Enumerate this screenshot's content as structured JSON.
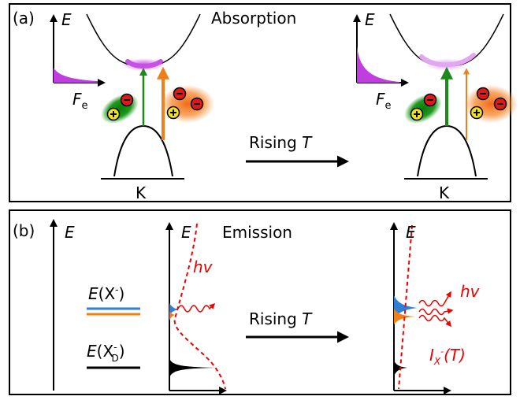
{
  "panel_a": {
    "label": "(a)",
    "title": "Absorption",
    "energy_axis": "E",
    "distribution_symbol": "F",
    "distribution_subscript": "e",
    "arrow_word": "Rising",
    "arrow_variable": "T",
    "valley": "K"
  },
  "panel_b": {
    "label": "(b)",
    "title": "Emission",
    "energy_axis": "E",
    "arrow_word": "Rising",
    "arrow_variable": "T",
    "upper_level": {
      "energy": "E",
      "open": "(X",
      "charge": "-",
      "close": ")"
    },
    "lower_level": {
      "energy": "E",
      "open": "(X",
      "charge": "-",
      "subscript": "D",
      "close": ")"
    },
    "photon": "hv",
    "intensity": {
      "symbol": "I",
      "subscript": "X",
      "charge": "-",
      "argument": "(T)"
    }
  }
}
